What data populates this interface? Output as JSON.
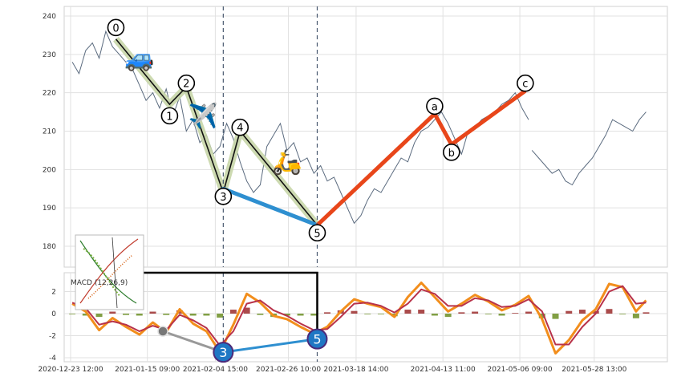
{
  "chart_data": [
    {
      "type": "line",
      "panel": "price",
      "ylim": [
        175,
        242
      ],
      "yticks": [
        180,
        190,
        200,
        210,
        220,
        230,
        240
      ],
      "grid": true,
      "xrange": [
        "2020-12-23 12:00",
        "2021-06-16 00:00"
      ],
      "series": [
        {
          "style": "thin grey-blue price line",
          "x": [
            "2020-12-24",
            "2020-12-26",
            "2020-12-28",
            "2020-12-30",
            "2021-01-01",
            "2021-01-03",
            "2021-01-05",
            "2021-01-07",
            "2021-01-09",
            "2021-01-11",
            "2021-01-13",
            "2021-01-15",
            "2021-01-17",
            "2021-01-19",
            "2021-01-21",
            "2021-01-23",
            "2021-01-25",
            "2021-01-27",
            "2021-01-29",
            "2021-01-31",
            "2021-02-02",
            "2021-02-04",
            "2021-02-06",
            "2021-02-08",
            "2021-02-10",
            "2021-02-12",
            "2021-02-14",
            "2021-02-16",
            "2021-02-18",
            "2021-02-20",
            "2021-02-22",
            "2021-02-24",
            "2021-02-26",
            "2021-02-28",
            "2021-03-02",
            "2021-03-04",
            "2021-03-06",
            "2021-03-08",
            "2021-03-10",
            "2021-03-12",
            "2021-03-14",
            "2021-03-16",
            "2021-03-18",
            "2021-03-20",
            "2021-03-22",
            "2021-03-24",
            "2021-03-26",
            "2021-03-28",
            "2021-03-30",
            "2021-04-01",
            "2021-04-03",
            "2021-04-05",
            "2021-04-07",
            "2021-04-09",
            "2021-04-11",
            "2021-04-13",
            "2021-04-15",
            "2021-04-17",
            "2021-04-19",
            "2021-04-21",
            "2021-04-23",
            "2021-04-25",
            "2021-04-27",
            "2021-04-29",
            "2021-05-01",
            "2021-05-03",
            "2021-05-05",
            "2021-05-07",
            "2021-05-09"
          ],
          "values": [
            228,
            225,
            231,
            233,
            229,
            236,
            232,
            230,
            228,
            226,
            222,
            218,
            220,
            216,
            221,
            214,
            219,
            210,
            213,
            207,
            209,
            204,
            206,
            212,
            208,
            202,
            197,
            194,
            196,
            206,
            209,
            212,
            205,
            207,
            202,
            203,
            199,
            201,
            197,
            198,
            194,
            190,
            186,
            188,
            192,
            195,
            194,
            197,
            200,
            203,
            202,
            207,
            210,
            211,
            213,
            215,
            212,
            208,
            204,
            210,
            211,
            213,
            214,
            215,
            217,
            218,
            220,
            216,
            213
          ]
        },
        {
          "style": "thin grey-blue price line (after c)",
          "x": [
            "2021-05-10",
            "2021-05-12",
            "2021-05-14",
            "2021-05-16",
            "2021-05-18",
            "2021-05-20",
            "2021-05-22",
            "2021-05-24",
            "2021-05-26",
            "2021-05-28",
            "2021-05-30",
            "2021-06-01",
            "2021-06-03",
            "2021-06-05",
            "2021-06-07",
            "2021-06-09",
            "2021-06-11",
            "2021-06-13"
          ],
          "values": [
            205,
            203,
            201,
            199,
            200,
            197,
            196,
            199,
            201,
            203,
            206,
            209,
            213,
            212,
            211,
            210,
            213,
            215
          ]
        },
        {
          "name": "",
          "style": "thick pale-green band, black centre line",
          "x": [
            "2021-01-06",
            "2021-01-22",
            "2021-01-27",
            "2021-02-07",
            "2021-02-12",
            "2021-03-07"
          ],
          "values": [
            234,
            217,
            221.5,
            194,
            210,
            185.5
          ]
        },
        {
          "style": "thick blue segment",
          "x": [
            "2021-02-07",
            "2021-03-07"
          ],
          "values": [
            195,
            185.5
          ]
        },
        {
          "style": "thick red-orange segments",
          "x": [
            "2021-03-07",
            "2021-04-11",
            "2021-04-16",
            "2021-05-08"
          ],
          "values": [
            185.5,
            214.5,
            206.5,
            220.5
          ]
        }
      ],
      "wave_labels": [
        {
          "text": "0",
          "x": "2021-01-06",
          "y": 237
        },
        {
          "text": "1",
          "x": "2021-01-22",
          "y": 214
        },
        {
          "text": "2",
          "x": "2021-01-27",
          "y": 222.5
        },
        {
          "text": "3",
          "x": "2021-02-07",
          "y": 193
        },
        {
          "text": "4",
          "x": "2021-02-12",
          "y": 211
        },
        {
          "text": "5",
          "x": "2021-03-07",
          "y": 183.5
        },
        {
          "text": "a",
          "x": "2021-04-11",
          "y": 216.5
        },
        {
          "text": "b",
          "x": "2021-04-16",
          "y": 204.5
        },
        {
          "text": "c",
          "x": "2021-05-08",
          "y": 222.5
        }
      ],
      "emoji_annotations": [
        {
          "icon": "car",
          "glyph": "🚙",
          "x": "2021-01-13",
          "y": 229
        },
        {
          "icon": "airplane",
          "glyph": "✈️",
          "x": "2021-02-01",
          "y": 214
        },
        {
          "icon": "scooter",
          "glyph": "🛵",
          "x": "2021-02-26",
          "y": 202
        }
      ],
      "vlines": [
        "2021-02-07",
        "2021-03-07"
      ]
    },
    {
      "type": "line",
      "panel": "macd",
      "ylim": [
        -4.1,
        3.8
      ],
      "yticks": [
        -4,
        -2,
        0,
        2
      ],
      "grid": true,
      "series": [
        {
          "name": "",
          "color": "#f28e1c",
          "x": [
            "2020-12-24",
            "2020-12-28",
            "2021-01-01",
            "2021-01-05",
            "2021-01-09",
            "2021-01-13",
            "2021-01-17",
            "2021-01-21",
            "2021-01-25",
            "2021-01-29",
            "2021-02-02",
            "2021-02-06",
            "2021-02-10",
            "2021-02-14",
            "2021-02-18",
            "2021-02-22",
            "2021-02-26",
            "2021-03-02",
            "2021-03-06",
            "2021-03-10",
            "2021-03-14",
            "2021-03-18",
            "2021-03-22",
            "2021-03-26",
            "2021-03-30",
            "2021-04-03",
            "2021-04-07",
            "2021-04-11",
            "2021-04-15",
            "2021-04-19",
            "2021-04-23",
            "2021-04-27",
            "2021-05-01",
            "2021-05-05",
            "2021-05-09",
            "2021-05-13",
            "2021-05-17",
            "2021-05-21",
            "2021-05-25",
            "2021-05-29",
            "2021-06-02",
            "2021-06-06",
            "2021-06-10",
            "2021-06-13"
          ],
          "values": [
            0.9,
            0.2,
            -1.5,
            -0.4,
            -1.2,
            -1.9,
            -0.8,
            -1.7,
            0.4,
            -0.9,
            -1.6,
            -3.5,
            -1.0,
            1.8,
            1.0,
            -0.2,
            -0.5,
            -1.2,
            -1.8,
            -1.2,
            0.2,
            1.3,
            0.9,
            0.6,
            -0.3,
            1.5,
            2.8,
            1.5,
            0.2,
            0.9,
            1.7,
            1.1,
            0.3,
            0.8,
            1.6,
            -0.5,
            -3.6,
            -2.4,
            -0.6,
            0.4,
            2.7,
            2.4,
            0.2,
            1.2
          ]
        },
        {
          "name": "",
          "color": "#b8324a",
          "x": [
            "2020-12-24",
            "2020-12-28",
            "2021-01-01",
            "2021-01-05",
            "2021-01-09",
            "2021-01-13",
            "2021-01-17",
            "2021-01-21",
            "2021-01-25",
            "2021-01-29",
            "2021-02-02",
            "2021-02-06",
            "2021-02-10",
            "2021-02-14",
            "2021-02-18",
            "2021-02-22",
            "2021-02-26",
            "2021-03-02",
            "2021-03-06",
            "2021-03-10",
            "2021-03-14",
            "2021-03-18",
            "2021-03-22",
            "2021-03-26",
            "2021-03-30",
            "2021-04-03",
            "2021-04-07",
            "2021-04-11",
            "2021-04-15",
            "2021-04-19",
            "2021-04-23",
            "2021-04-27",
            "2021-05-01",
            "2021-05-05",
            "2021-05-09",
            "2021-05-13",
            "2021-05-17",
            "2021-05-21",
            "2021-05-25",
            "2021-05-29",
            "2021-06-02",
            "2021-06-06",
            "2021-06-10",
            "2021-06-13"
          ],
          "values": [
            1.0,
            0.5,
            -1.0,
            -0.7,
            -1.0,
            -1.6,
            -1.1,
            -1.5,
            -0.1,
            -0.6,
            -1.3,
            -2.9,
            -1.6,
            0.9,
            1.2,
            0.3,
            -0.2,
            -0.9,
            -1.5,
            -1.4,
            -0.3,
            0.9,
            1.0,
            0.7,
            0.1,
            0.9,
            2.2,
            1.8,
            0.7,
            0.7,
            1.4,
            1.2,
            0.6,
            0.7,
            1.3,
            0.2,
            -2.8,
            -2.8,
            -1.2,
            0.0,
            2.0,
            2.5,
            0.9,
            1.0
          ]
        }
      ],
      "histogram_colors": {
        "positive": "#9b2b2b",
        "negative": "#6b8e23"
      },
      "label": "MACD (12,26,9)",
      "markers": [
        {
          "text": "",
          "x": "2021-01-20",
          "y": -1.6,
          "color": "#808080"
        },
        {
          "text": "3",
          "x": "2021-02-07",
          "y": -3.5,
          "color": "#1f77c4"
        },
        {
          "text": "5",
          "x": "2021-03-07",
          "y": -2.3,
          "color": "#1f77c4"
        }
      ],
      "xticks": [
        "2020-12-23 12:00",
        "2021-01-15 09:00",
        "2021-02-04 15:00",
        "2021-02-26 10:00",
        "2021-03-18 14:00",
        "2021-04-13 11:00",
        "2021-05-06 09:00",
        "2021-05-28 13:00"
      ]
    }
  ],
  "inset": {
    "icon": "thumbnail-chart-icon"
  }
}
